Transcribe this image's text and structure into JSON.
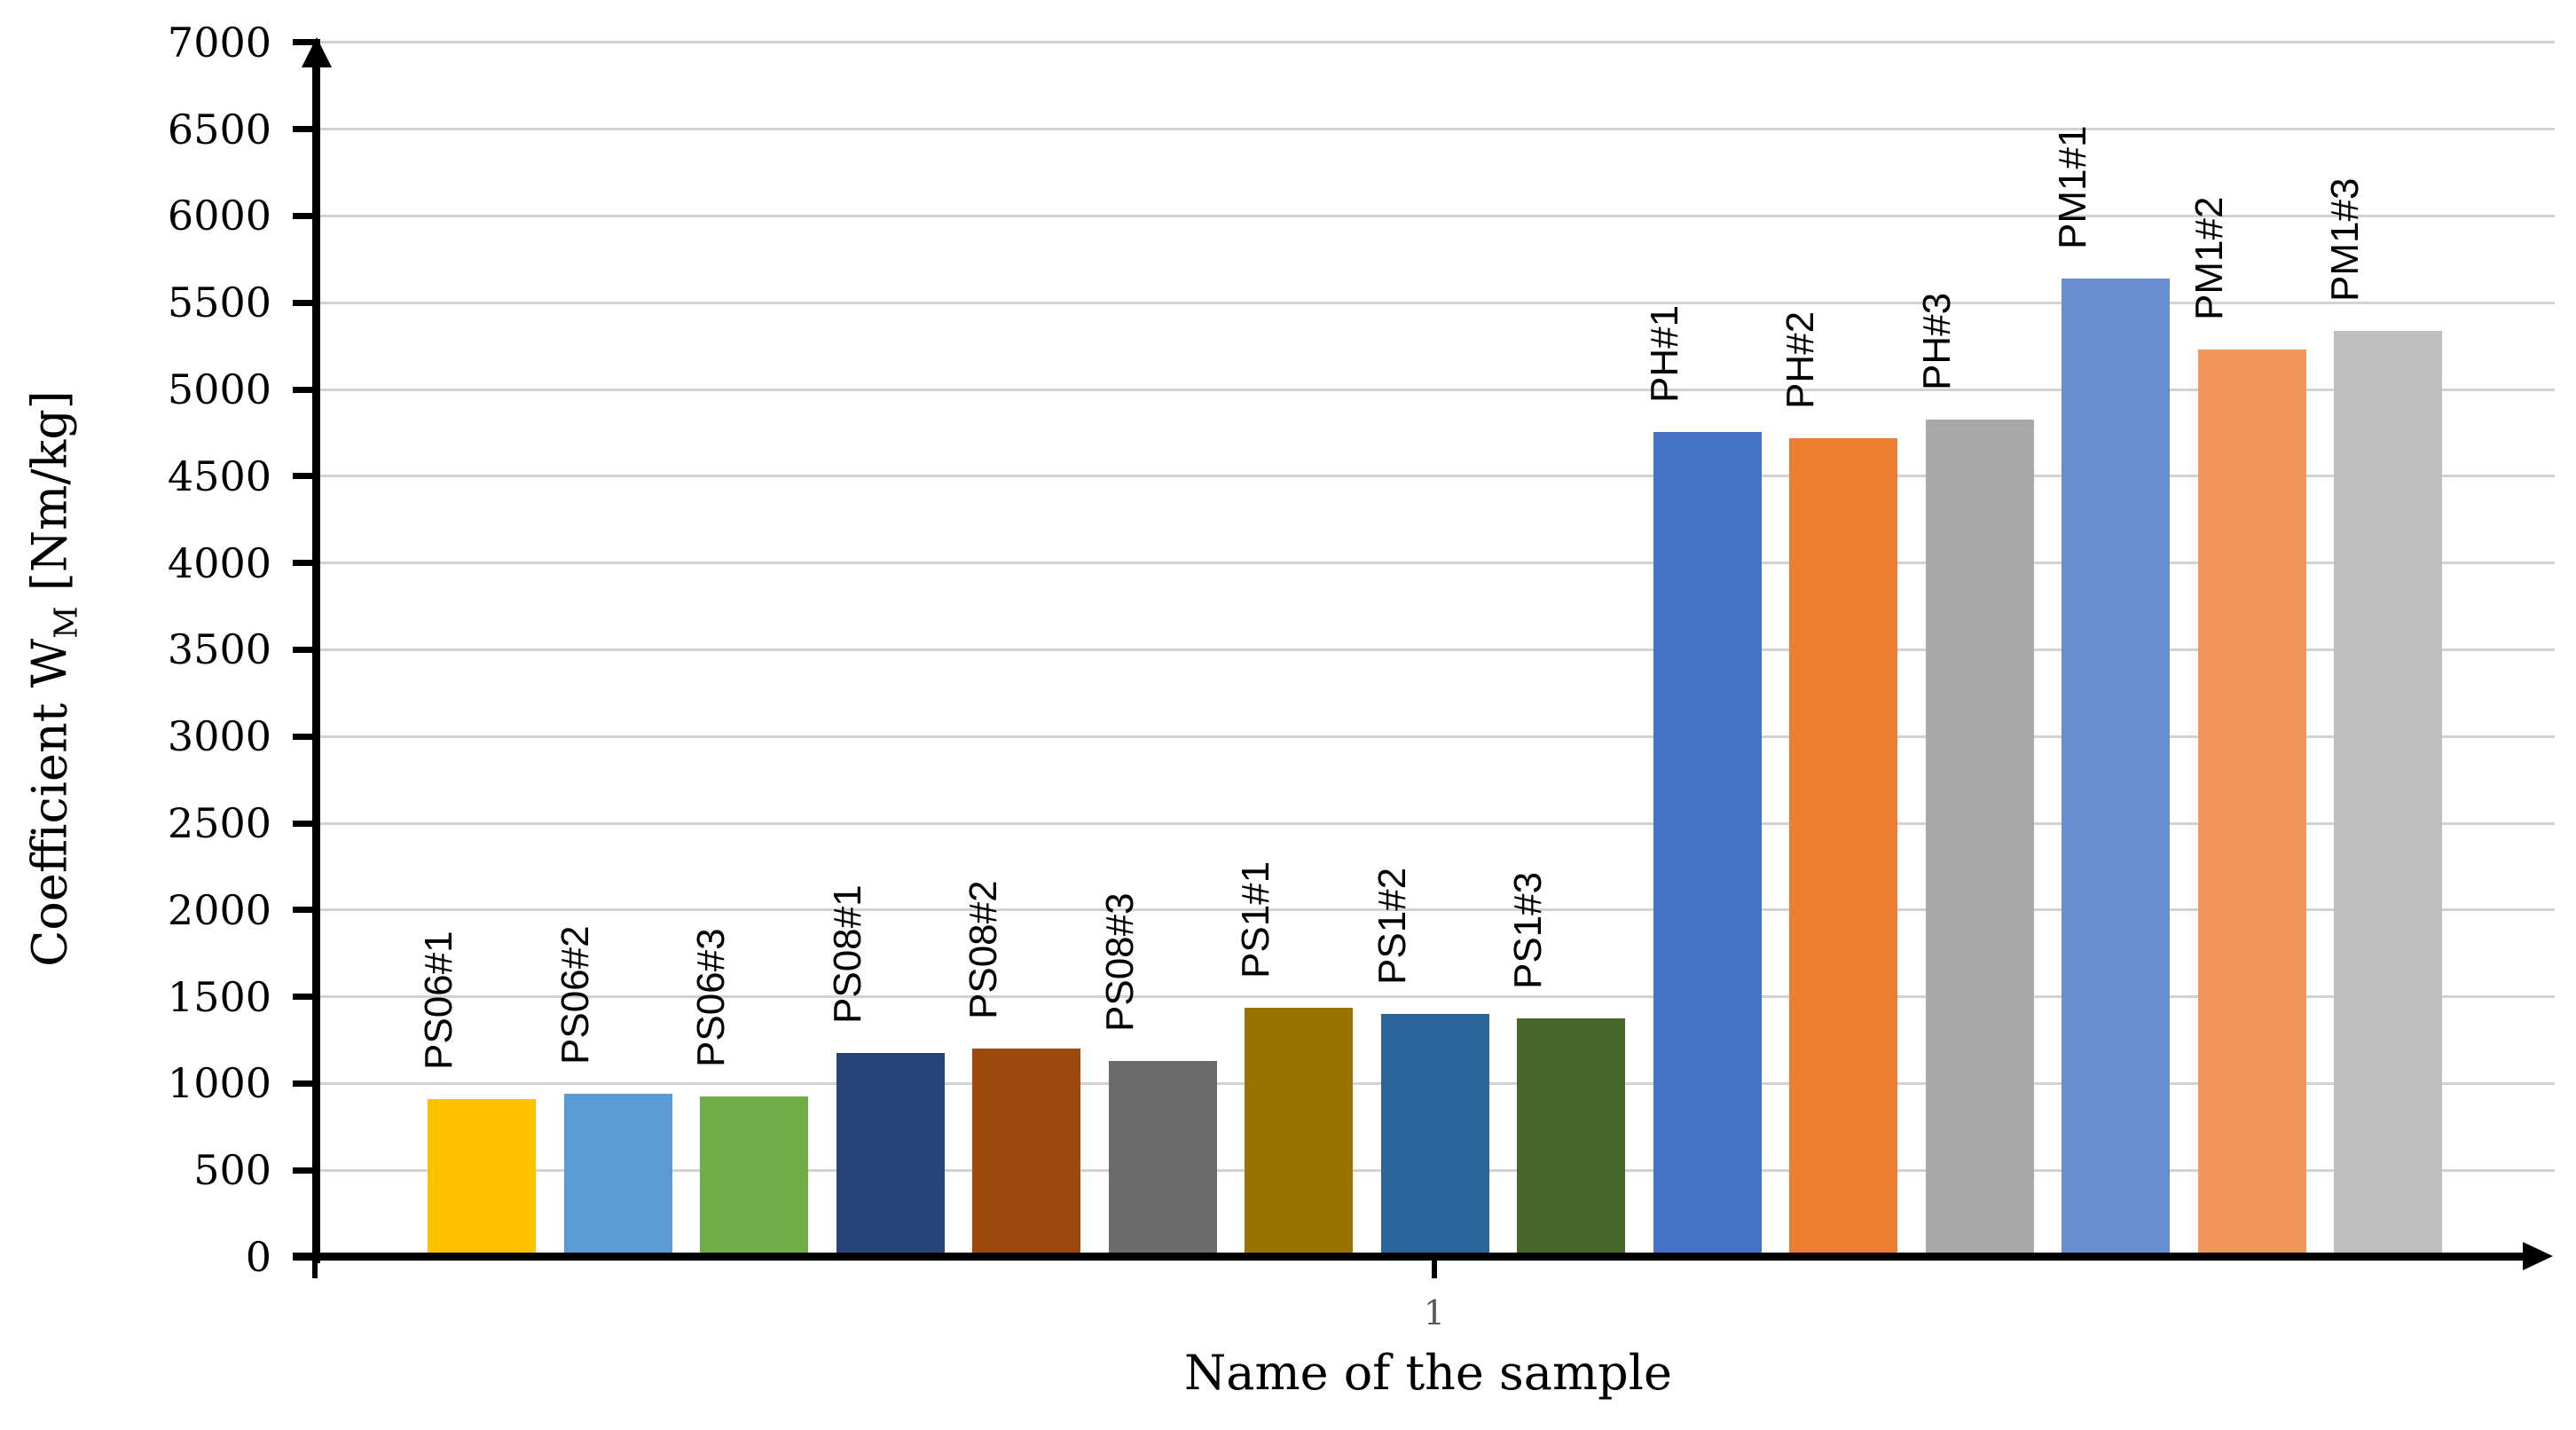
{
  "chart_data": {
    "type": "bar",
    "title": "",
    "xlabel": "Name of the sample",
    "ylabel": "Coefficient WM [Nm/kg]",
    "ylabel_parts": {
      "prefix": "Coefficient W",
      "subscript": "M",
      "suffix": " [Nm/kg]"
    },
    "categories": [
      "PS06#1",
      "PS06#2",
      "PS06#3",
      "PS08#1",
      "PS08#2",
      "PS08#3",
      "PS1#1",
      "PS1#2",
      "PS1#3",
      "PH#1",
      "PH#2",
      "PH#3",
      "PM1#1",
      "PM1#2",
      "PM1#3"
    ],
    "values": [
      910,
      940,
      925,
      1175,
      1200,
      1130,
      1435,
      1400,
      1375,
      4755,
      4720,
      4825,
      5640,
      5230,
      5335
    ],
    "colors": [
      "#FFC000",
      "#5B9BD5",
      "#70AD47",
      "#264478",
      "#9E480E",
      "#6B6B6B",
      "#997300",
      "#2A6599",
      "#44682C",
      "#4472C4",
      "#ED7D31",
      "#A8A8A8",
      "#698ED0",
      "#F1975A",
      "#BFBFBF"
    ],
    "ylim": [
      0,
      7000
    ],
    "ytick_step": 500,
    "yticks": [
      0,
      500,
      1000,
      1500,
      2000,
      2500,
      3000,
      3500,
      4000,
      4500,
      5000,
      5500,
      6000,
      6500,
      7000
    ],
    "category_axis_tick_label": "1",
    "grid": "horizontal",
    "gridline_color": "#d2d2d2",
    "axis_color": "#000000",
    "category_tick_label_color": "#595959",
    "legend": "none",
    "bar_label_rotation_deg": 90
  }
}
